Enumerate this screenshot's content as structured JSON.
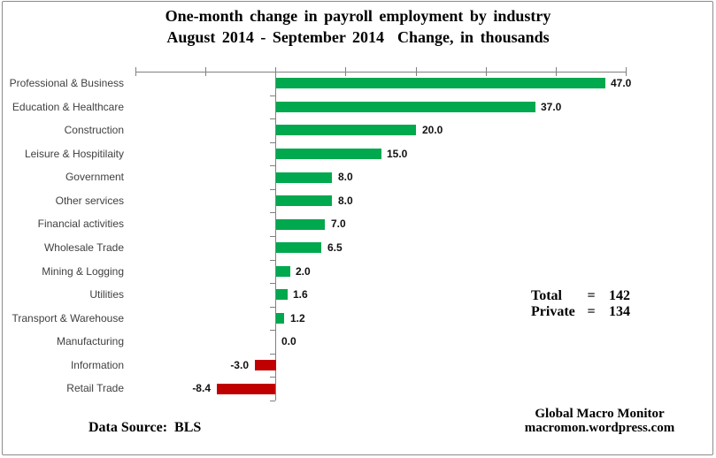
{
  "title": {
    "line1": "One-month change in payroll employment by industry",
    "line2": "August 2014 - September 2014  Change, in thousands"
  },
  "chart_data": {
    "type": "bar",
    "orientation": "horizontal",
    "title": "One-month change in payroll employment by industry",
    "subtitle": "August 2014 - September 2014  Change, in thousands",
    "categories": [
      "Professional & Business",
      "Education & Healthcare",
      "Construction",
      "Leisure & Hospitilaity",
      "Government",
      "Other services",
      "Financial activities",
      "Wholesale Trade",
      "Mining & Logging",
      "Utilities",
      "Transport & Warehouse",
      "Manufacturing",
      "Information",
      "Retail Trade"
    ],
    "values": [
      47.0,
      37.0,
      20.0,
      15.0,
      8.0,
      8.0,
      7.0,
      6.5,
      2.0,
      1.6,
      1.2,
      0.0,
      -3.0,
      -8.4
    ],
    "value_labels": [
      "47.0",
      "37.0",
      "20.0",
      "15.0",
      "8.0",
      "8.0",
      "7.0",
      "6.5",
      "2.0",
      "1.6",
      "1.2",
      "0.0",
      "-3.0",
      "-8.4"
    ],
    "xlim": [
      -20,
      50
    ],
    "tick_step": 10,
    "grid": false,
    "value_axis_position": "top",
    "colors": {
      "positive": "#00a84e",
      "negative": "#c00000",
      "axis": "#808080"
    }
  },
  "annotations": {
    "total_label": "Total",
    "total_eq": "=",
    "total_value": "142",
    "private_label": "Private",
    "private_eq": "=",
    "private_value": "134"
  },
  "footer": {
    "source": "Data Source:  BLS",
    "brand_line1": "Global Macro Monitor",
    "brand_line2": "macromon.wordpress.com"
  }
}
